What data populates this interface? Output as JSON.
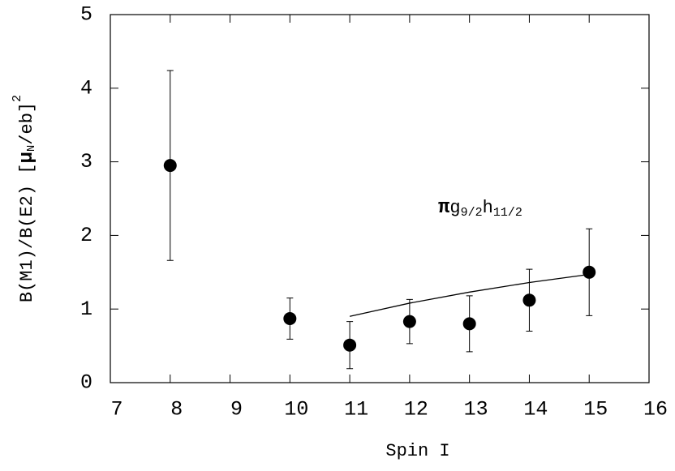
{
  "chart_data": {
    "type": "scatter",
    "x_label": "Spin I",
    "y_label": [
      "B(M1)/B(E2)  [",
      "μ",
      "N",
      "/eb]",
      "2"
    ],
    "annotation": [
      "π",
      "g",
      "9/2",
      "h",
      "11/2"
    ],
    "xlim": [
      7,
      16
    ],
    "xticks": [
      7,
      8,
      9,
      10,
      11,
      12,
      13,
      14,
      15,
      16
    ],
    "ylim": [
      0,
      5
    ],
    "yticks": [
      0,
      1,
      2,
      3,
      4,
      5
    ],
    "x": [
      8,
      10,
      11,
      12,
      13,
      14,
      15
    ],
    "series": [
      {
        "color": "#000000",
        "values": [
          2.95,
          0.87,
          0.51,
          0.83,
          0.8,
          1.12,
          1.5
        ],
        "errors": [
          1.29,
          0.28,
          0.32,
          0.3,
          0.38,
          0.42,
          0.59
        ]
      }
    ],
    "curve": {
      "color": "#000000",
      "x": [
        11,
        12,
        13,
        14,
        15
      ],
      "values": [
        0.9,
        1.08,
        1.23,
        1.36,
        1.47
      ]
    }
  }
}
